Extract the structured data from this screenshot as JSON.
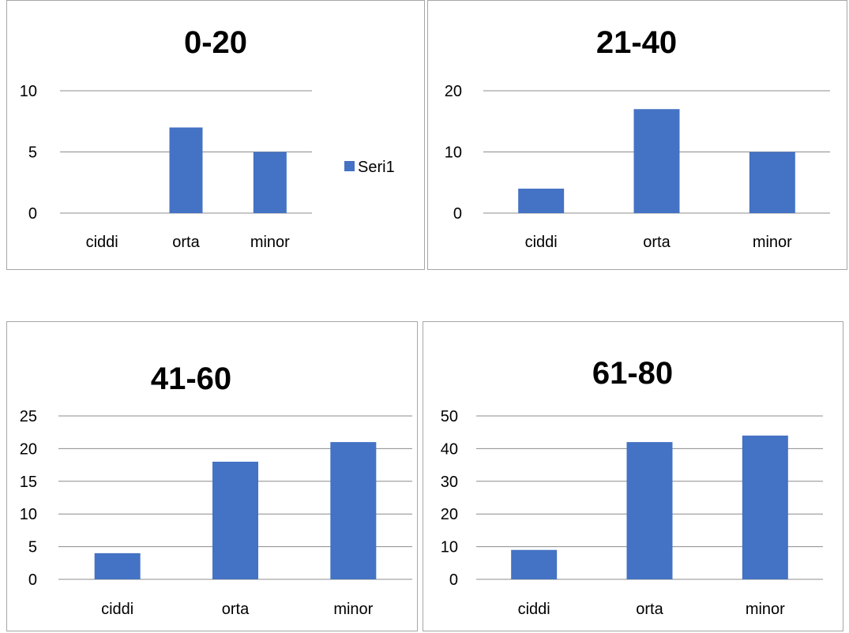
{
  "chart_data": [
    {
      "type": "bar",
      "title": "0-20",
      "categories": [
        "ciddi",
        "orta",
        "minor"
      ],
      "series": [
        {
          "name": "Seri1",
          "values": [
            0,
            7,
            5
          ]
        }
      ],
      "ylim": [
        0,
        10
      ],
      "yticks": [
        0,
        5,
        10
      ],
      "grid": true,
      "legend": "right",
      "color": "#4472C4"
    },
    {
      "type": "bar",
      "title": "21-40",
      "categories": [
        "ciddi",
        "orta",
        "minor"
      ],
      "series": [
        {
          "values": [
            4,
            17,
            10
          ]
        }
      ],
      "ylim": [
        0,
        20
      ],
      "yticks": [
        0,
        10,
        20
      ],
      "grid": true,
      "color": "#4472C4"
    },
    {
      "type": "bar",
      "title": "41-60",
      "categories": [
        "ciddi",
        "orta",
        "minor"
      ],
      "series": [
        {
          "values": [
            4,
            18,
            21
          ]
        }
      ],
      "ylim": [
        0,
        25
      ],
      "yticks": [
        0,
        5,
        10,
        15,
        20,
        25
      ],
      "grid": true,
      "color": "#4472C4"
    },
    {
      "type": "bar",
      "title": "61-80",
      "categories": [
        "ciddi",
        "orta",
        "minor"
      ],
      "series": [
        {
          "values": [
            9,
            42,
            44
          ]
        }
      ],
      "ylim": [
        0,
        50
      ],
      "yticks": [
        0,
        10,
        20,
        30,
        40,
        50
      ],
      "grid": true,
      "color": "#4472C4"
    }
  ]
}
